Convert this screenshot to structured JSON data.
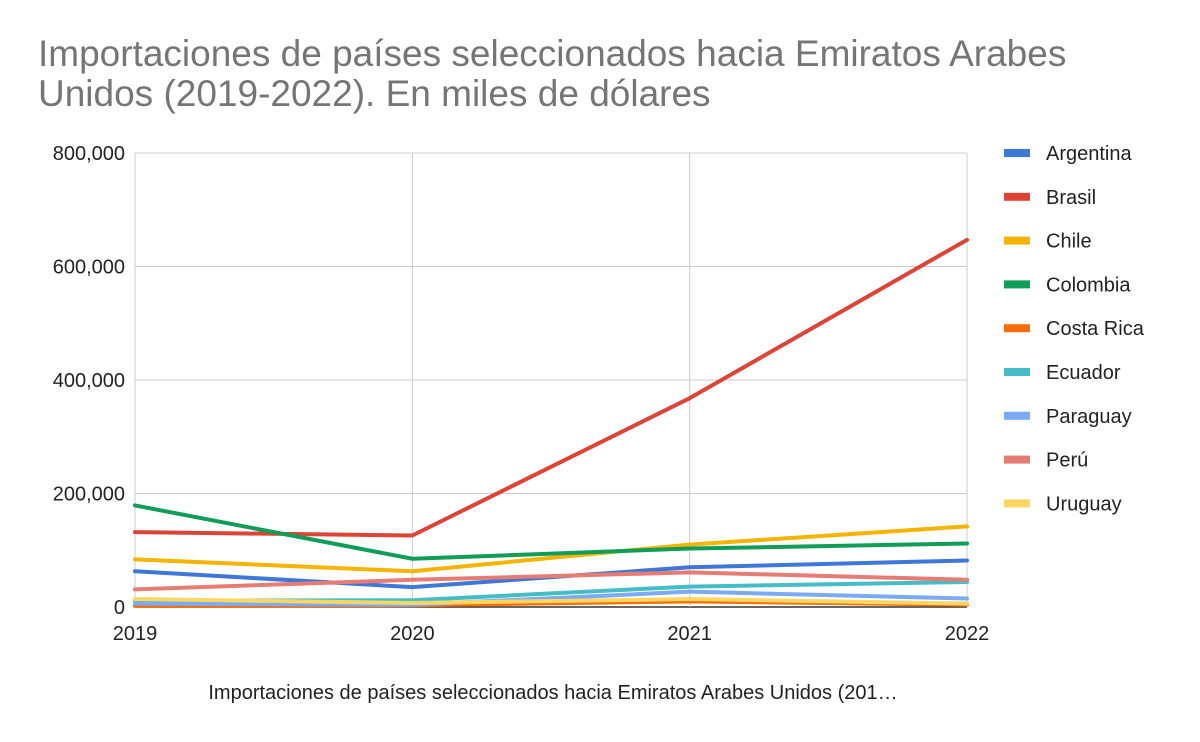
{
  "chart_data": {
    "type": "line",
    "title": "Importaciones de países seleccionados hacia Emiratos Arabes Unidos (2019-2022). En miles de dólares",
    "xlabel": "Importaciones de países seleccionados hacia Emiratos Arabes Unidos (201…",
    "ylabel": "",
    "categories": [
      "2019",
      "2020",
      "2021",
      "2022"
    ],
    "ylim": [
      0,
      800000
    ],
    "yticks": [
      "0",
      "200,000",
      "400,000",
      "600,000",
      "800,000"
    ],
    "ytick_values": [
      0,
      200000,
      400000,
      600000,
      800000
    ],
    "grid": true,
    "legend_position": "right",
    "series": [
      {
        "name": "Argentina",
        "color": "#3d78d8",
        "values": [
          63000,
          35000,
          70000,
          82000
        ]
      },
      {
        "name": "Brasil",
        "color": "#dc4437",
        "values": [
          132000,
          126000,
          368000,
          647000
        ]
      },
      {
        "name": "Chile",
        "color": "#f4b400",
        "values": [
          84000,
          63000,
          110000,
          142000
        ]
      },
      {
        "name": "Colombia",
        "color": "#0f9d58",
        "values": [
          179000,
          85000,
          103000,
          112000
        ]
      },
      {
        "name": "Costa Rica",
        "color": "#ff6d00",
        "values": [
          2000,
          3000,
          10000,
          4000
        ]
      },
      {
        "name": "Ecuador",
        "color": "#46bdc6",
        "values": [
          11000,
          12000,
          36000,
          44000
        ]
      },
      {
        "name": "Paraguay",
        "color": "#7baaf7",
        "values": [
          6000,
          4000,
          27000,
          15000
        ]
      },
      {
        "name": "Perú",
        "color": "#e67c73",
        "values": [
          31000,
          48000,
          61000,
          48000
        ]
      },
      {
        "name": "Uruguay",
        "color": "#fdd663",
        "values": [
          14000,
          7000,
          14000,
          6000
        ]
      }
    ]
  }
}
